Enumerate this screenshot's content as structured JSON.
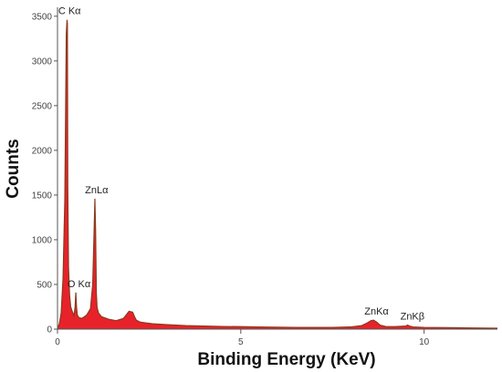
{
  "chart_data": {
    "type": "area",
    "xlabel": "Binding Energy (KeV)",
    "ylabel": "Counts",
    "xlim": [
      0,
      12
    ],
    "ylim": [
      0,
      3600
    ],
    "x_ticks": [
      0,
      5,
      10
    ],
    "x_tick_labels": [
      "0",
      "5",
      "10"
    ],
    "y_ticks": [
      0,
      500,
      1000,
      1500,
      2000,
      2500,
      3000,
      3500
    ],
    "y_tick_labels": [
      "0",
      "500",
      "1000",
      "1500",
      "2000",
      "2500",
      "3000",
      "3500"
    ],
    "grid": false,
    "colors": {
      "fill": "#e8222a",
      "peak": "#8b3a1e",
      "axis": "#555555"
    },
    "series": [
      {
        "x": [
          0.0,
          0.05,
          0.1,
          0.15,
          0.2,
          0.24,
          0.26,
          0.27,
          0.28,
          0.3,
          0.33,
          0.36,
          0.4,
          0.45,
          0.48,
          0.5,
          0.52,
          0.54,
          0.58,
          0.65,
          0.72,
          0.8,
          0.9,
          0.96,
          1.0,
          1.02,
          1.04,
          1.06,
          1.08,
          1.12,
          1.2,
          1.4,
          1.6,
          1.8,
          1.95,
          2.05,
          2.1,
          2.15,
          2.25,
          2.4,
          2.6,
          3.0,
          3.5,
          4.0,
          4.5,
          5.0,
          5.5,
          6.0,
          6.5,
          7.0,
          7.5,
          8.0,
          8.3,
          8.45,
          8.55,
          8.62,
          8.7,
          8.8,
          8.95,
          9.2,
          9.5,
          9.55,
          9.6,
          9.7,
          10.0,
          11.0,
          12.0
        ],
        "y": [
          0,
          60,
          180,
          560,
          1450,
          3300,
          3460,
          3420,
          1600,
          700,
          380,
          250,
          200,
          150,
          250,
          410,
          240,
          160,
          130,
          120,
          135,
          160,
          230,
          500,
          1120,
          1460,
          1080,
          400,
          240,
          180,
          140,
          110,
          95,
          120,
          200,
          190,
          140,
          100,
          80,
          70,
          60,
          50,
          40,
          35,
          30,
          28,
          25,
          22,
          20,
          20,
          20,
          25,
          40,
          70,
          95,
          100,
          80,
          45,
          30,
          28,
          35,
          45,
          35,
          25,
          20,
          15,
          10
        ]
      }
    ],
    "annotations": [
      {
        "label": "C Kα",
        "x": 0.27,
        "y": 3460
      },
      {
        "label": "ZnLα",
        "x": 1.0,
        "y": 1460
      },
      {
        "label": "O Kα",
        "x": 0.52,
        "y": 410
      },
      {
        "label": "ZnKα",
        "x": 8.62,
        "y": 100
      },
      {
        "label": "ZnKβ",
        "x": 9.6,
        "y": 45
      }
    ]
  }
}
